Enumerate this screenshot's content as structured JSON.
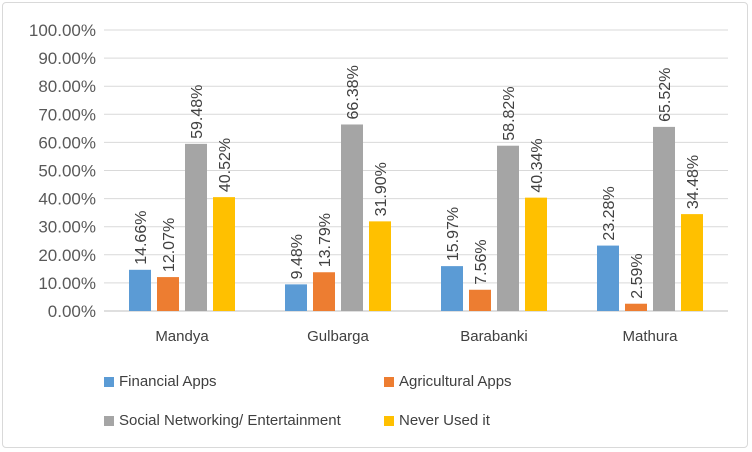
{
  "chart_data": {
    "type": "bar",
    "categories": [
      "Mandya",
      "Gulbarga",
      "Barabanki",
      "Mathura"
    ],
    "series": [
      {
        "name": "Financial Apps",
        "color": "#5b9bd5",
        "values": [
          14.66,
          9.48,
          15.97,
          23.28
        ],
        "labels": [
          "14.66%",
          "9.48%",
          "15.97%",
          "23.28%"
        ]
      },
      {
        "name": "Agricultural Apps",
        "color": "#ed7d31",
        "values": [
          12.07,
          13.79,
          7.56,
          2.59
        ],
        "labels": [
          "12.07%",
          "13.79%",
          "7.56%",
          "2.59%"
        ]
      },
      {
        "name": "Social Networking/ Entertainment",
        "color": "#a5a5a5",
        "values": [
          59.48,
          66.38,
          58.82,
          65.52
        ],
        "labels": [
          "59.48%",
          "66.38%",
          "58.82%",
          "65.52%"
        ]
      },
      {
        "name": "Never Used it",
        "color": "#ffc000",
        "values": [
          40.52,
          31.9,
          40.34,
          34.48
        ],
        "labels": [
          "40.52%",
          "31.90%",
          "40.34%",
          "34.48%"
        ]
      }
    ],
    "yticks": [
      "0.00%",
      "10.00%",
      "20.00%",
      "30.00%",
      "40.00%",
      "50.00%",
      "60.00%",
      "70.00%",
      "80.00%",
      "90.00%",
      "100.00%"
    ],
    "ylim": [
      0,
      100
    ],
    "grid": true,
    "legend_position": "bottom",
    "title": "",
    "xlabel": "",
    "ylabel": ""
  }
}
